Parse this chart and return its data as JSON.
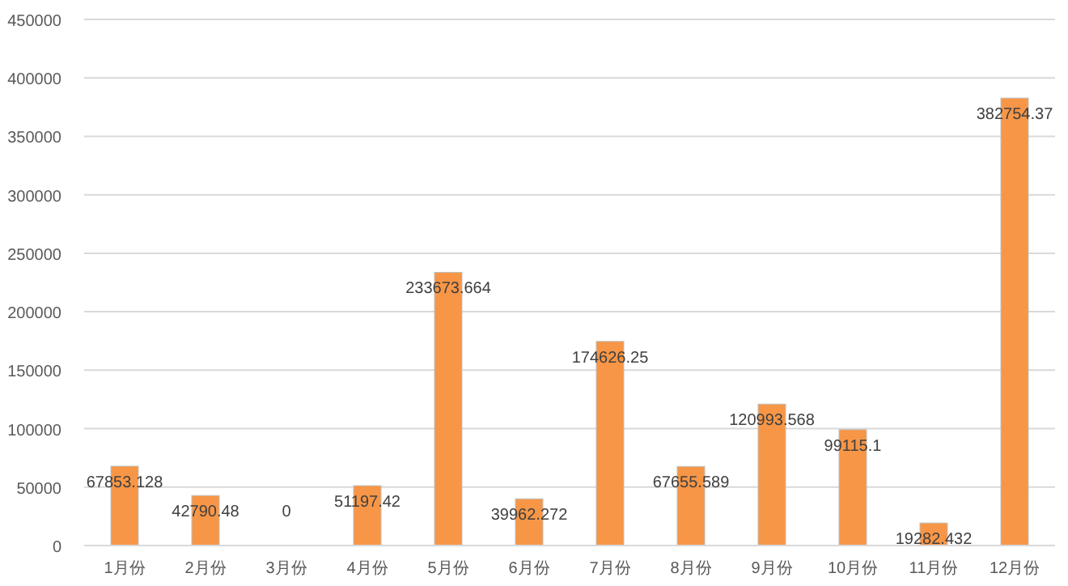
{
  "chart_data": {
    "type": "bar",
    "categories": [
      "1月份",
      "2月份",
      "3月份",
      "4月份",
      "5月份",
      "6月份",
      "7月份",
      "8月份",
      "9月份",
      "10月份",
      "11月份",
      "12月份"
    ],
    "values": [
      67853.128,
      42790.48,
      0,
      51197.42,
      233673.664,
      39962.272,
      174626.25,
      67655.589,
      120993.568,
      99115.1,
      19282.432,
      382754.37
    ],
    "color": "#f79646",
    "ylim": [
      0,
      450000
    ],
    "yticks": [
      0,
      50000,
      100000,
      150000,
      200000,
      250000,
      300000,
      350000,
      400000,
      450000
    ],
    "grid": "y",
    "data_labels": true
  }
}
